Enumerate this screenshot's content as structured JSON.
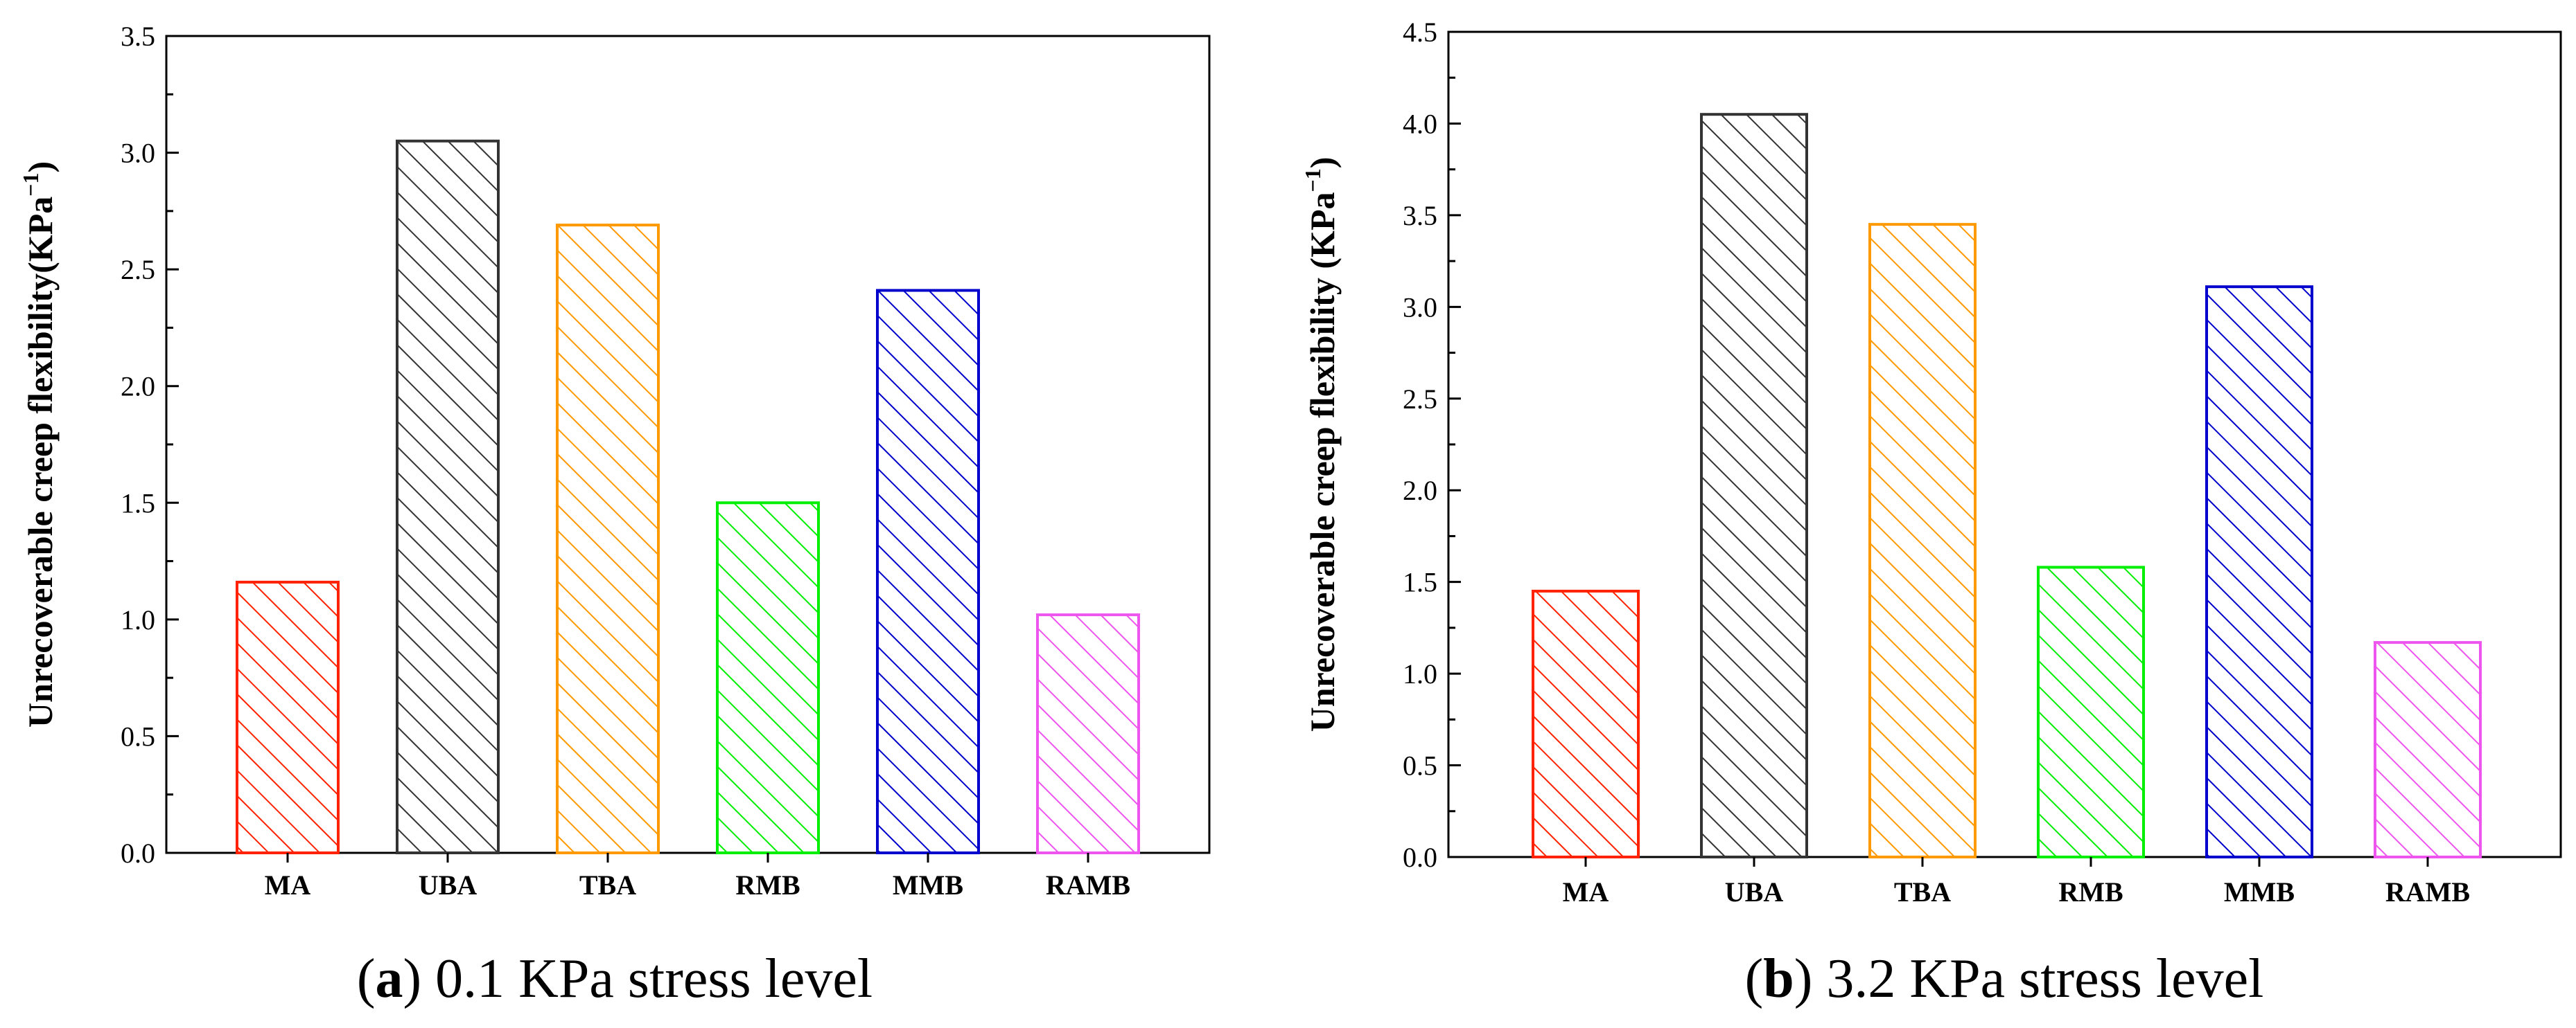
{
  "chart_data": [
    {
      "type": "bar",
      "title": "(a) 0.1 KPa stress level",
      "caption_letter": "a",
      "caption_text": "0.1 KPa stress level",
      "xlabel": "",
      "ylabel": "Unrecoverable creep flexibility(KPa",
      "ylabel_sup": "−1",
      "ylabel_close": ")",
      "categories": [
        "MA",
        "UBA",
        "TBA",
        "RMB",
        "MMB",
        "RAMB"
      ],
      "values": [
        1.16,
        3.05,
        2.69,
        1.5,
        2.41,
        1.02
      ],
      "colors": [
        "#ff2200",
        "#333333",
        "#ff9900",
        "#00ee00",
        "#0000cc",
        "#ee55ee"
      ],
      "ylim": [
        0,
        3.5
      ],
      "yticks": [
        "0.0",
        "0.5",
        "1.0",
        "1.5",
        "2.0",
        "2.5",
        "3.0",
        "3.5"
      ],
      "grid": false,
      "legend": "none"
    },
    {
      "type": "bar",
      "title": "(b) 3.2 KPa stress level",
      "caption_letter": "b",
      "caption_text": "3.2 KPa stress level",
      "xlabel": "",
      "ylabel": "Unrecoverable creep flexibility (KPa",
      "ylabel_sup": "−1",
      "ylabel_close": ")",
      "categories": [
        "MA",
        "UBA",
        "TBA",
        "RMB",
        "MMB",
        "RAMB"
      ],
      "values": [
        1.45,
        4.05,
        3.45,
        1.58,
        3.11,
        1.17
      ],
      "colors": [
        "#ff2200",
        "#333333",
        "#ff9900",
        "#00ee00",
        "#0000cc",
        "#ee55ee"
      ],
      "ylim": [
        0,
        4.5
      ],
      "yticks": [
        "0.0",
        "0.5",
        "1.0",
        "1.5",
        "2.0",
        "2.5",
        "3.0",
        "3.5",
        "4.0",
        "4.5"
      ],
      "grid": false,
      "legend": "none"
    }
  ]
}
